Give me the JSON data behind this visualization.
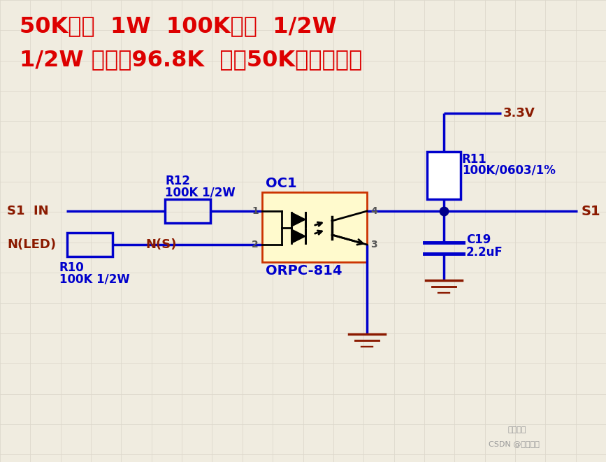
{
  "bg_color": "#f0ece0",
  "grid_color": "#ddd8cc",
  "blue": "#0000cc",
  "dark_blue": "#00008b",
  "dark_red": "#8b1a00",
  "red": "#dd0000",
  "black": "#000000",
  "yellow_fill": "#fffacd",
  "oc_border": "#cc3300",
  "title1": "50K电阱  1W  100K电阱  1/2W",
  "title2": "1/2W 极限是96.8K  两个50K串联可以，",
  "s1in": "S1  IN",
  "nled": "N(LED)",
  "ns": "N(S)",
  "oc1": "OC1",
  "orpc": "ORPC-814",
  "r12a": "R12",
  "r12b": "100K 1/2W",
  "r10a": "R10",
  "r10b": "100K 1/2W",
  "r11a": "R11",
  "r11b": "100K/0603/1%",
  "c19a": "C19",
  "c19b": "2.2uF",
  "v33": "3.3V",
  "s1": "S1",
  "pin1": "1",
  "pin2": "2",
  "pin3": "3",
  "pin4": "4",
  "wm1": "汾辰所致",
  "wm2": "CSDN @柟辰所致"
}
